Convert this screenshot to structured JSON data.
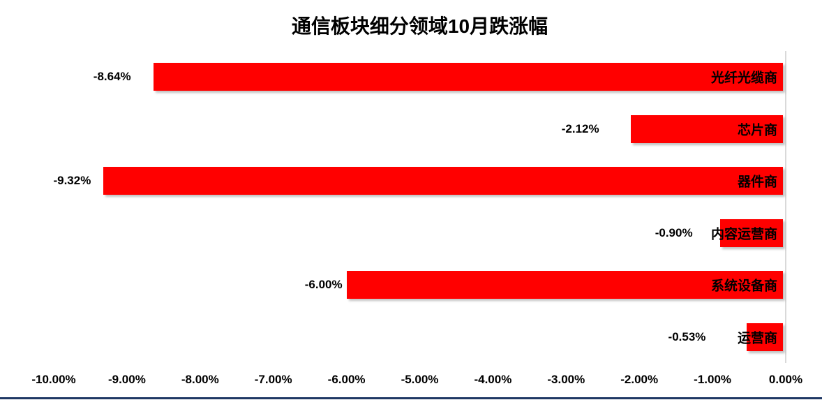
{
  "chart_data": {
    "type": "bar",
    "orientation": "horizontal",
    "title": "通信板块细分领域10月跌涨幅",
    "categories": [
      "光纤光缆商",
      "芯片商",
      "器件商",
      "内容运营商",
      "系统设备商",
      "运营商"
    ],
    "values": [
      -8.64,
      -2.12,
      -9.32,
      -0.9,
      -6.0,
      -0.53
    ],
    "value_labels": [
      "-8.64%",
      "-2.12%",
      "-9.32%",
      "-0.90%",
      "-6.00%",
      "-0.53%"
    ],
    "x_ticks": [
      {
        "label": "-10.00%",
        "value": -10
      },
      {
        "label": "-9.00%",
        "value": -9
      },
      {
        "label": "-8.00%",
        "value": -8
      },
      {
        "label": "-7.00%",
        "value": -7
      },
      {
        "label": "-6.00%",
        "value": -6
      },
      {
        "label": "-5.00%",
        "value": -5
      },
      {
        "label": "-4.00%",
        "value": -4
      },
      {
        "label": "-3.00%",
        "value": -3
      },
      {
        "label": "-2.00%",
        "value": -2
      },
      {
        "label": "-1.00%",
        "value": -1
      },
      {
        "label": "0.00%",
        "value": 0
      }
    ],
    "xlim": [
      -10,
      0
    ],
    "grid": false,
    "legend": false,
    "value_label_position": "outside-end-left",
    "category_label_position": "inside-end-right",
    "colors": {
      "bar": "#FF0000",
      "label_text": "#000000",
      "title_text": "#000000",
      "zero_axis_line": "#D9D9D9",
      "bottom_border": "#1F3864",
      "background": "#FFFFFF"
    }
  }
}
